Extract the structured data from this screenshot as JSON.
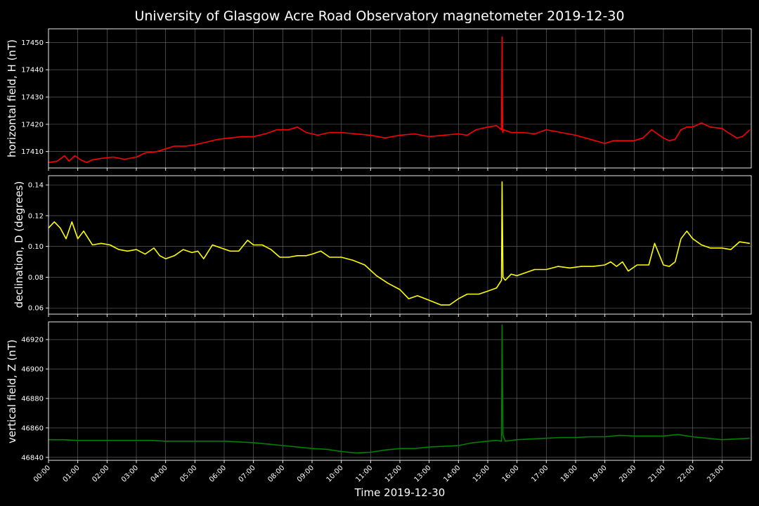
{
  "title": "University of Glasgow Acre Road Observatory magnetometer 2019-12-30",
  "xlabel": "Time 2019-12-30",
  "chart_data": [
    {
      "type": "line",
      "ylabel": "horizontal field, H (nT)",
      "color": "#ff0000",
      "ylim": [
        17404,
        17455
      ],
      "yticks": [
        17410,
        17420,
        17430,
        17440,
        17450
      ],
      "xlim": [
        0,
        24
      ],
      "x_ticks": [
        "00:00",
        "01:00",
        "02:00",
        "03:00",
        "04:00",
        "05:00",
        "06:00",
        "07:00",
        "08:00",
        "09:00",
        "10:00",
        "11:00",
        "12:00",
        "13:00",
        "14:00",
        "15:00",
        "16:00",
        "17:00",
        "18:00",
        "19:00",
        "20:00",
        "21:00",
        "22:00",
        "23:00"
      ],
      "series": [
        {
          "x": [
            0,
            0.3,
            0.55,
            0.7,
            0.9,
            1.1,
            1.3,
            1.5,
            1.8,
            2.2,
            2.6,
            3.0,
            3.3,
            3.7,
            4.0,
            4.3,
            4.7,
            5.0,
            5.4,
            5.8,
            6.2,
            6.6,
            7.0,
            7.4,
            7.8,
            8.2,
            8.5,
            8.8,
            9.2,
            9.6,
            10.0,
            10.5,
            11.0,
            11.5,
            12.0,
            12.5,
            13.0,
            13.5,
            14.0,
            14.3,
            14.6,
            15.0,
            15.3,
            15.47,
            15.49,
            15.51,
            15.55,
            15.8,
            16.2,
            16.6,
            17.0,
            17.5,
            18.0,
            18.5,
            19.0,
            19.3,
            19.7,
            20.0,
            20.3,
            20.6,
            21.0,
            21.2,
            21.4,
            21.6,
            21.8,
            22.0,
            22.3,
            22.6,
            23.0,
            23.2,
            23.5,
            23.7,
            23.95
          ],
          "y": [
            17406,
            17406.5,
            17408.5,
            17406.5,
            17408.5,
            17407,
            17406,
            17407,
            17407.5,
            17408,
            17407.2,
            17408,
            17409.5,
            17410,
            17411,
            17412,
            17412,
            17412.5,
            17413.5,
            17414.5,
            17415,
            17415.5,
            17415.5,
            17416.5,
            17418,
            17418,
            17419,
            17417,
            17416,
            17417,
            17417,
            17416.5,
            17416,
            17415,
            17416,
            17416.5,
            17415.5,
            17416,
            17416.5,
            17416,
            17418,
            17419,
            17419.5,
            17418,
            17452,
            17417,
            17418,
            17417,
            17417,
            17416.5,
            17418,
            17417,
            17416,
            17414.5,
            17413,
            17414,
            17414,
            17414,
            17415,
            17418,
            17415,
            17414,
            17414.5,
            17418,
            17419,
            17419,
            17420.5,
            17419,
            17418.5,
            17417,
            17415,
            17415.5,
            17418
          ]
        }
      ]
    },
    {
      "type": "line",
      "ylabel": "declination, D (degrees)",
      "color": "#ffff00",
      "ylim": [
        0.056,
        0.146
      ],
      "yticks": [
        0.06,
        0.08,
        0.1,
        0.12,
        0.14
      ],
      "xlim": [
        0,
        24
      ],
      "series": [
        {
          "x": [
            0,
            0.2,
            0.4,
            0.6,
            0.8,
            1.0,
            1.2,
            1.5,
            1.8,
            2.1,
            2.4,
            2.7,
            3.0,
            3.3,
            3.6,
            3.8,
            4.0,
            4.3,
            4.6,
            4.9,
            5.1,
            5.3,
            5.6,
            5.9,
            6.2,
            6.5,
            6.8,
            7.0,
            7.3,
            7.6,
            7.9,
            8.2,
            8.5,
            8.8,
            9.0,
            9.3,
            9.6,
            10.0,
            10.4,
            10.8,
            11.2,
            11.6,
            12.0,
            12.3,
            12.6,
            13.0,
            13.4,
            13.7,
            14.0,
            14.3,
            14.7,
            15.0,
            15.3,
            15.47,
            15.49,
            15.52,
            15.6,
            15.8,
            16.0,
            16.3,
            16.6,
            17.0,
            17.4,
            17.8,
            18.2,
            18.6,
            19.0,
            19.2,
            19.4,
            19.6,
            19.8,
            20.1,
            20.3,
            20.5,
            20.7,
            21.0,
            21.2,
            21.4,
            21.6,
            21.8,
            22.0,
            22.3,
            22.6,
            23.0,
            23.3,
            23.6,
            23.95
          ],
          "y": [
            0.112,
            0.116,
            0.112,
            0.105,
            0.116,
            0.105,
            0.11,
            0.101,
            0.102,
            0.101,
            0.098,
            0.097,
            0.098,
            0.095,
            0.099,
            0.094,
            0.092,
            0.094,
            0.098,
            0.096,
            0.097,
            0.092,
            0.101,
            0.099,
            0.097,
            0.097,
            0.104,
            0.101,
            0.101,
            0.098,
            0.093,
            0.093,
            0.094,
            0.094,
            0.095,
            0.097,
            0.093,
            0.093,
            0.091,
            0.088,
            0.081,
            0.076,
            0.072,
            0.066,
            0.068,
            0.065,
            0.062,
            0.062,
            0.066,
            0.069,
            0.069,
            0.071,
            0.073,
            0.078,
            0.142,
            0.08,
            0.078,
            0.082,
            0.081,
            0.083,
            0.085,
            0.085,
            0.087,
            0.086,
            0.087,
            0.087,
            0.088,
            0.09,
            0.087,
            0.09,
            0.084,
            0.088,
            0.088,
            0.088,
            0.102,
            0.088,
            0.087,
            0.09,
            0.105,
            0.11,
            0.105,
            0.101,
            0.099,
            0.099,
            0.098,
            0.103,
            0.102
          ]
        }
      ]
    },
    {
      "type": "line",
      "ylabel": "vertical field, Z (nT)",
      "color": "#008000",
      "ylim": [
        46838,
        46932
      ],
      "yticks": [
        46840,
        46860,
        46880,
        46900,
        46920
      ],
      "xlim": [
        0,
        24
      ],
      "series": [
        {
          "x": [
            0,
            0.5,
            1.0,
            1.5,
            2.0,
            2.5,
            3.0,
            3.5,
            4.0,
            4.5,
            5.0,
            5.5,
            6.0,
            6.5,
            7.0,
            7.5,
            8.0,
            8.5,
            9.0,
            9.5,
            10.0,
            10.5,
            11.0,
            11.5,
            12.0,
            12.5,
            13.0,
            13.5,
            14.0,
            14.5,
            15.0,
            15.3,
            15.47,
            15.49,
            15.52,
            15.6,
            16.0,
            16.5,
            17.0,
            17.5,
            18.0,
            18.5,
            19.0,
            19.5,
            20.0,
            20.5,
            21.0,
            21.5,
            22.0,
            22.5,
            23.0,
            23.5,
            23.95
          ],
          "y": [
            46852,
            46852,
            46851.5,
            46851.5,
            46851.5,
            46851.5,
            46851.5,
            46851.5,
            46851,
            46851,
            46851,
            46851,
            46851,
            46850.5,
            46850,
            46849,
            46848,
            46847,
            46846,
            46845.5,
            46844,
            46843,
            46843.5,
            46845,
            46846,
            46846,
            46847,
            46847.5,
            46848,
            46850,
            46851,
            46851.5,
            46851,
            46930,
            46855,
            46851,
            46852,
            46852.5,
            46853,
            46853.5,
            46853.5,
            46854,
            46854,
            46855,
            46854.5,
            46854.5,
            46854.5,
            46855.5,
            46854,
            46853,
            46852,
            46852.5,
            46853
          ]
        }
      ]
    }
  ]
}
